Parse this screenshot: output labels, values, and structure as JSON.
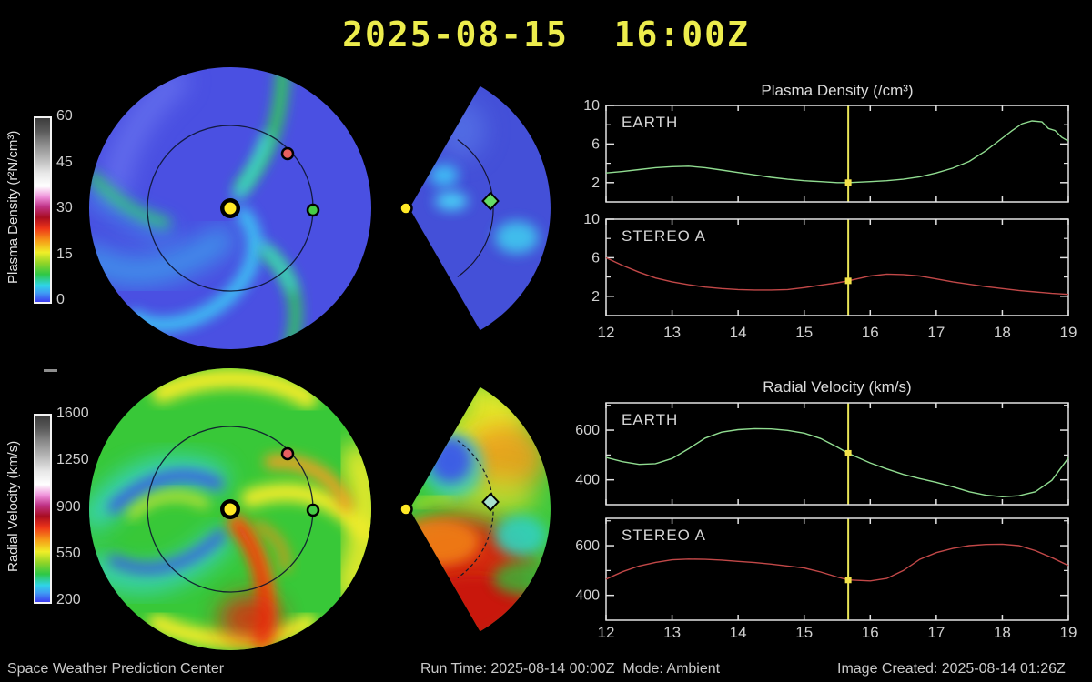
{
  "title": "2025-08-15  16:00Z",
  "footer": {
    "brand": "Space Weather Prediction Center",
    "run_time": "Run Time: 2025-08-14 00:00Z",
    "mode": "Mode: Ambient",
    "image_created": "Image Created: 2025-08-14 01:26Z"
  },
  "colorbars": [
    {
      "label": "Plasma Density (r²N/cm³)",
      "ticks": [
        "60",
        "45",
        "30",
        "15",
        "0"
      ]
    },
    {
      "label": "Radial Velocity (km/s)",
      "ticks": [
        "1600",
        "1250",
        "900",
        "550",
        "200"
      ]
    }
  ],
  "markers": {
    "sun_color": "#ffe926",
    "stereo_a_color": "#e86060",
    "earth_dot_color": "#46cc46",
    "earth_diamond_color": "#66dc66",
    "earth_diamond_color_velocity": "#a8e0cc"
  },
  "accent": {
    "time_line": "#e8e457",
    "time_marker": "#f2e24a"
  },
  "chart_data": [
    {
      "type": "line",
      "title": "Plasma Density (/cm³)",
      "xlim": [
        12,
        19
      ],
      "xticks": [
        12,
        13,
        14,
        15,
        16,
        17,
        18,
        19
      ],
      "ylim": [
        0,
        10
      ],
      "yticks": [
        2,
        6,
        10
      ],
      "yminor": [
        4,
        8
      ],
      "time_marker_x": 15.667,
      "panels": [
        {
          "label": "EARTH",
          "color": "#90dc90",
          "marker_y": 2.0,
          "x": [
            12,
            12.25,
            12.5,
            12.75,
            13,
            13.25,
            13.5,
            13.75,
            14,
            14.25,
            14.5,
            14.75,
            15,
            15.25,
            15.5,
            15.667,
            16,
            16.25,
            16.5,
            16.75,
            17,
            17.25,
            17.5,
            17.75,
            18,
            18.15,
            18.3,
            18.45,
            18.6,
            18.7,
            18.8,
            18.9,
            19
          ],
          "y": [
            3.0,
            3.15,
            3.35,
            3.55,
            3.65,
            3.7,
            3.55,
            3.3,
            3.05,
            2.8,
            2.55,
            2.35,
            2.2,
            2.1,
            2.0,
            2.0,
            2.1,
            2.2,
            2.35,
            2.6,
            3.0,
            3.5,
            4.2,
            5.3,
            6.6,
            7.4,
            8.1,
            8.4,
            8.3,
            7.6,
            7.4,
            6.7,
            6.3
          ]
        },
        {
          "label": "STEREO A",
          "color": "#c24848",
          "marker_y": 3.6,
          "x": [
            12,
            12.25,
            12.5,
            12.75,
            13,
            13.25,
            13.5,
            13.75,
            14,
            14.25,
            14.5,
            14.75,
            15,
            15.25,
            15.5,
            15.667,
            16,
            16.25,
            16.5,
            16.75,
            17,
            17.25,
            17.5,
            17.75,
            18,
            18.25,
            18.5,
            18.75,
            19
          ],
          "y": [
            6.0,
            5.2,
            4.5,
            3.9,
            3.5,
            3.2,
            2.95,
            2.8,
            2.7,
            2.65,
            2.65,
            2.7,
            2.9,
            3.15,
            3.4,
            3.6,
            4.1,
            4.3,
            4.25,
            4.1,
            3.8,
            3.5,
            3.25,
            3.0,
            2.8,
            2.6,
            2.45,
            2.3,
            2.2
          ]
        }
      ]
    },
    {
      "type": "line",
      "title": "Radial Velocity (km/s)",
      "xlim": [
        12,
        19
      ],
      "xticks": [
        12,
        13,
        14,
        15,
        16,
        17,
        18,
        19
      ],
      "ylim": [
        300,
        710
      ],
      "yticks": [
        400,
        600
      ],
      "yminor": [
        500,
        700
      ],
      "time_marker_x": 15.667,
      "panels": [
        {
          "label": "EARTH",
          "color": "#90dc90",
          "marker_y": 507,
          "x": [
            12,
            12.25,
            12.5,
            12.75,
            13,
            13.25,
            13.5,
            13.75,
            14,
            14.25,
            14.5,
            14.75,
            15,
            15.25,
            15.5,
            15.667,
            16,
            16.25,
            16.5,
            16.75,
            17,
            17.25,
            17.5,
            17.75,
            18,
            18.25,
            18.5,
            18.75,
            19
          ],
          "y": [
            490,
            473,
            462,
            465,
            486,
            525,
            568,
            592,
            602,
            606,
            605,
            599,
            588,
            566,
            532,
            507,
            468,
            444,
            422,
            405,
            390,
            372,
            352,
            338,
            332,
            336,
            352,
            398,
            488
          ]
        },
        {
          "label": "STEREO A",
          "color": "#c24848",
          "marker_y": 462,
          "x": [
            12,
            12.25,
            12.5,
            12.75,
            13,
            13.25,
            13.5,
            13.75,
            14,
            14.25,
            14.5,
            14.75,
            15,
            15.25,
            15.5,
            15.667,
            16,
            16.25,
            16.5,
            16.75,
            17,
            17.25,
            17.5,
            17.75,
            18,
            18.25,
            18.5,
            18.75,
            19
          ],
          "y": [
            465,
            495,
            518,
            533,
            543,
            546,
            545,
            542,
            537,
            532,
            526,
            518,
            510,
            494,
            474,
            462,
            458,
            468,
            500,
            545,
            572,
            589,
            600,
            605,
            606,
            600,
            580,
            552,
            520
          ]
        }
      ]
    }
  ]
}
